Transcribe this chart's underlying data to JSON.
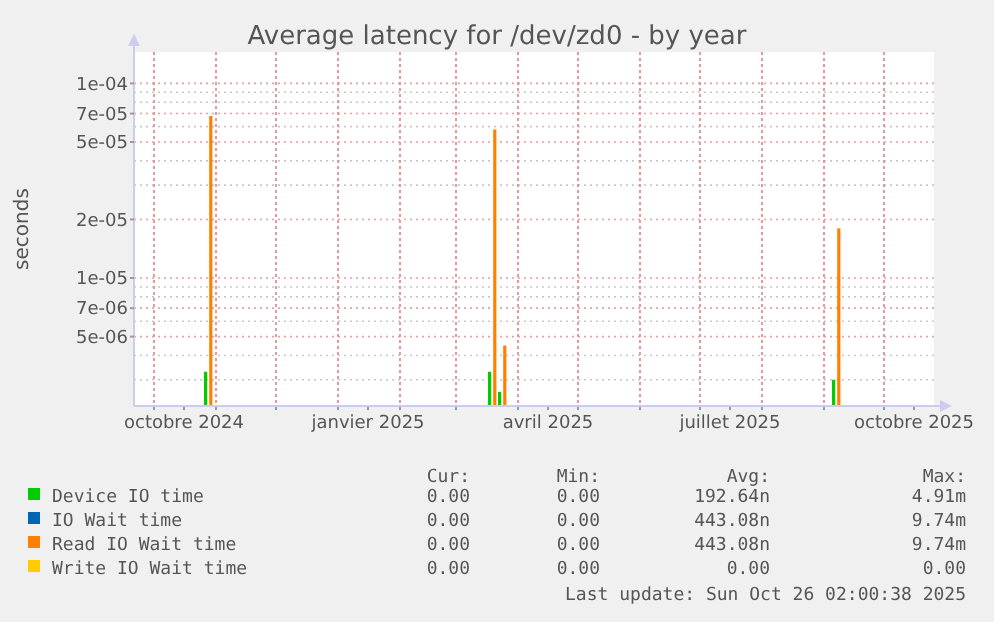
{
  "chart_data": {
    "type": "bar",
    "title": "Average latency for /dev/zd0 - by year",
    "ylabel": "seconds",
    "log": "y",
    "grid": true,
    "legend": "bottom",
    "xlim": [
      "2024-09-21",
      "2025-10-26"
    ],
    "xticks": [
      {
        "value": "2024-10-01",
        "label": null
      },
      {
        "value": "2024-10-16",
        "label": "octobre 2024"
      },
      {
        "value": "2024-11-01",
        "label": null
      },
      {
        "value": "2024-12-01",
        "label": null
      },
      {
        "value": "2025-01-01",
        "label": null
      },
      {
        "value": "2025-01-16",
        "label": "janvier 2025"
      },
      {
        "value": "2025-02-01",
        "label": null
      },
      {
        "value": "2025-03-01",
        "label": null
      },
      {
        "value": "2025-04-01",
        "label": null
      },
      {
        "value": "2025-04-16",
        "label": "avril 2025"
      },
      {
        "value": "2025-05-01",
        "label": null
      },
      {
        "value": "2025-06-01",
        "label": null
      },
      {
        "value": "2025-07-01",
        "label": null
      },
      {
        "value": "2025-07-16",
        "label": "juillet 2025"
      },
      {
        "value": "2025-08-01",
        "label": null
      },
      {
        "value": "2025-09-01",
        "label": null
      },
      {
        "value": "2025-10-01",
        "label": null
      },
      {
        "value": "2025-10-16",
        "label": "octobre 2025"
      }
    ],
    "ylim": [
      2.2e-06,
      0.000145
    ],
    "yticks": [
      {
        "value": 3e-06,
        "label": null
      },
      {
        "value": 4e-06,
        "label": null
      },
      {
        "value": 5e-06,
        "label": "5e-06"
      },
      {
        "value": 6e-06,
        "label": null
      },
      {
        "value": 7e-06,
        "label": "7e-06"
      },
      {
        "value": 8e-06,
        "label": null
      },
      {
        "value": 9e-06,
        "label": null
      },
      {
        "value": 1e-05,
        "label": "1e-05"
      },
      {
        "value": 2e-05,
        "label": "2e-05"
      },
      {
        "value": 3e-05,
        "label": null
      },
      {
        "value": 4e-05,
        "label": null
      },
      {
        "value": 5e-05,
        "label": "5e-05"
      },
      {
        "value": 6e-05,
        "label": null
      },
      {
        "value": 7e-05,
        "label": "7e-05"
      },
      {
        "value": 8e-05,
        "label": null
      },
      {
        "value": 9e-05,
        "label": null
      },
      {
        "value": 0.0001,
        "label": "1e-04"
      }
    ],
    "x": [
      "2024-10-28",
      "2025-03-19",
      "2025-03-24",
      "2025-09-07"
    ],
    "series": [
      {
        "name": "Device IO time",
        "color": "#00cc00",
        "values": [
          3.3e-06,
          3.3e-06,
          2.6e-06,
          3e-06
        ]
      },
      {
        "name": "IO Wait time",
        "color": "#0066b3",
        "values": [
          null,
          null,
          null,
          null
        ]
      },
      {
        "name": "Read IO Wait time",
        "color": "#ff8000",
        "values": [
          6.8e-05,
          5.8e-05,
          4.5e-06,
          1.8e-05
        ]
      },
      {
        "name": "Write IO Wait time",
        "color": "#ffcc00",
        "values": [
          null,
          null,
          null,
          null
        ]
      }
    ],
    "annotations": [
      "Cur:",
      "Min:",
      "Avg:",
      "Max:",
      "0.00",
      "0.00",
      "192.64n",
      "4.91m",
      "0.00",
      "0.00",
      "443.08n",
      "9.74m",
      "0.00",
      "0.00",
      "443.08n",
      "9.74m",
      "0.00",
      "0.00",
      "0.00",
      "0.00",
      "Last update: Sun Oct 26 02:00:38 2025"
    ]
  }
}
